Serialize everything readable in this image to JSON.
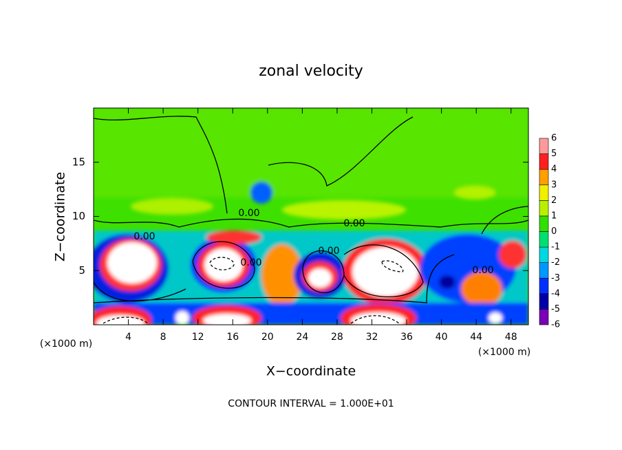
{
  "chart_data": {
    "type": "contour",
    "title": "zonal velocity",
    "x_label": "X−coordinate",
    "y_label": "Z−coordinate",
    "x_unit_label": "(×1000 m)",
    "y_unit_label": "(×1000 m)",
    "annotation": "CONTOUR INTERVAL = 1.000E+01",
    "xlim": [
      0,
      50
    ],
    "ylim": [
      0,
      20
    ],
    "xticks": [
      4,
      8,
      12,
      16,
      20,
      24,
      28,
      32,
      36,
      40,
      44,
      48
    ],
    "yticks": [
      5,
      10,
      15
    ],
    "contour_labels": [
      "0.00",
      "0.00",
      "0.00",
      "0.00",
      "0.00",
      "0.00"
    ],
    "colorbar": {
      "ticks": [
        -6,
        -5,
        -4,
        -3,
        -2,
        -1,
        0,
        1,
        2,
        3,
        4,
        5,
        6
      ],
      "colors": [
        "#7a00b8",
        "#0000a8",
        "#0030ff",
        "#0098ff",
        "#00d8e0",
        "#00e070",
        "#30e000",
        "#b8f000",
        "#f0f000",
        "#ffa000",
        "#ff2020",
        "#ff9a9a"
      ]
    }
  }
}
